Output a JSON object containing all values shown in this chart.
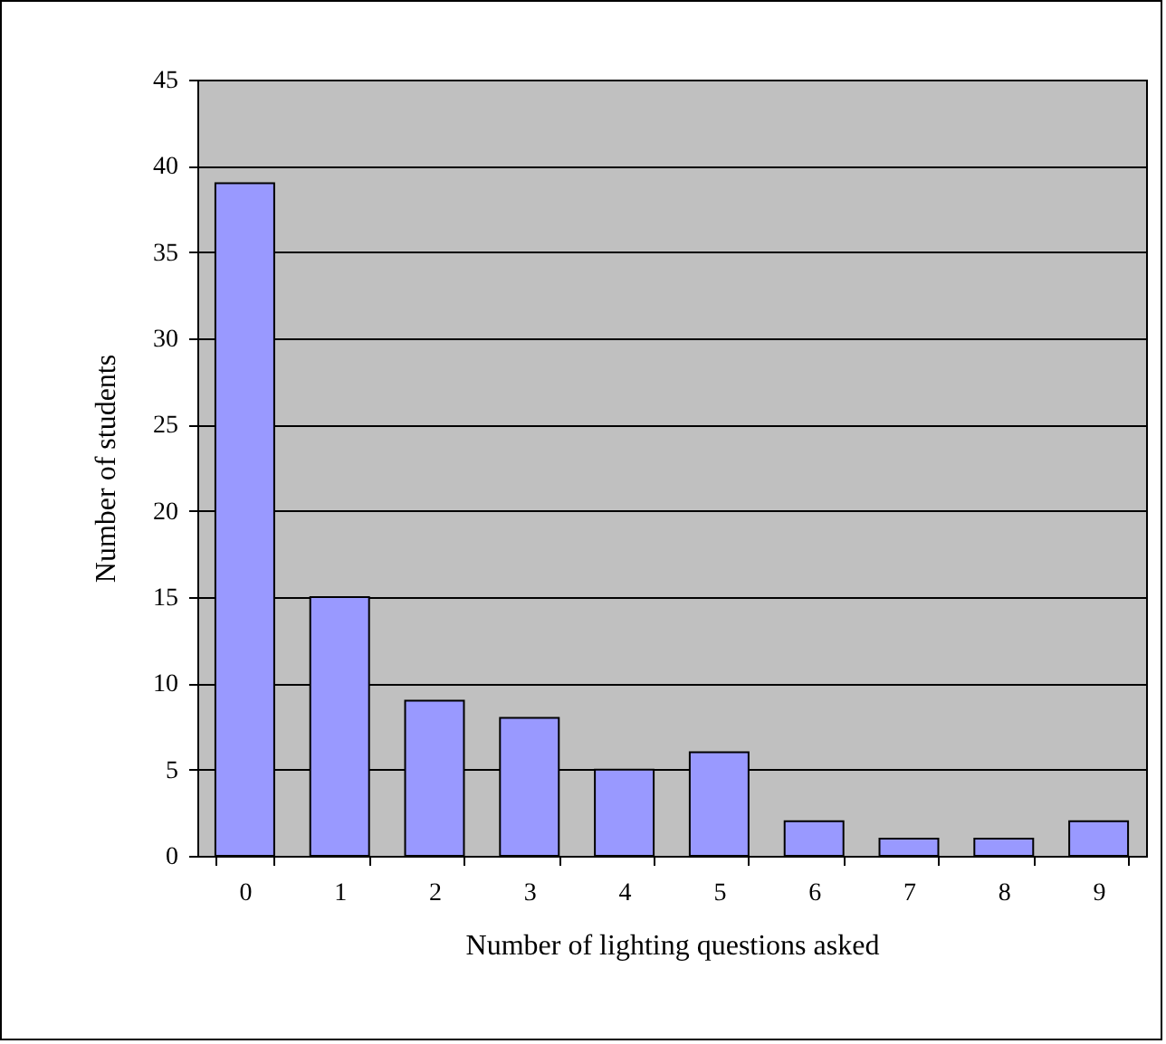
{
  "chart_data": {
    "type": "bar",
    "xlabel": "Number of lighting questions asked",
    "ylabel": "Number of students",
    "categories": [
      "0",
      "1",
      "2",
      "3",
      "4",
      "5",
      "6",
      "7",
      "8",
      "9"
    ],
    "values": [
      39,
      15,
      9,
      8,
      5,
      6,
      2,
      1,
      1,
      2
    ],
    "color": "#9999ff",
    "ylim": [
      0,
      45
    ],
    "yticks": [
      0,
      5,
      10,
      15,
      20,
      25,
      30,
      35,
      40,
      45
    ],
    "grid": "y"
  }
}
